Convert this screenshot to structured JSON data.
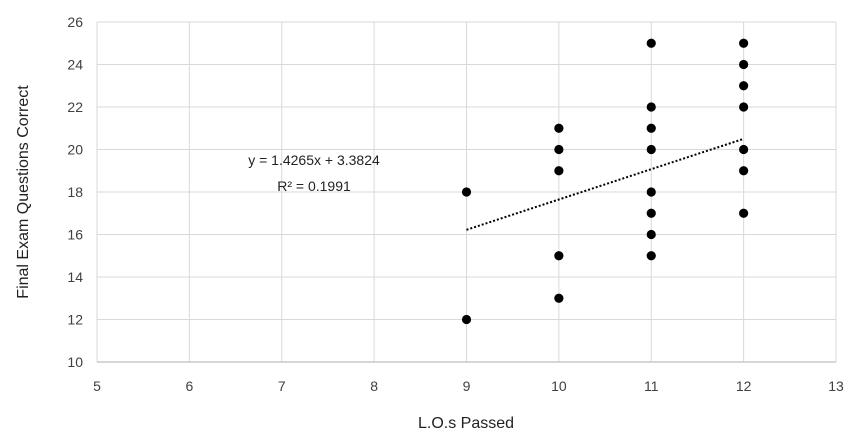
{
  "chart_data": {
    "type": "scatter",
    "title": "",
    "xlabel": "L.O.s Passed",
    "ylabel": "Final Exam Questions Correct",
    "xlim": [
      5,
      13
    ],
    "ylim": [
      10,
      26
    ],
    "x_ticks": [
      5,
      6,
      7,
      8,
      9,
      10,
      11,
      12,
      13
    ],
    "y_ticks": [
      10,
      12,
      14,
      16,
      18,
      20,
      22,
      24,
      26
    ],
    "grid": true,
    "legend": "none",
    "marker_color": "#000000",
    "trendline": {
      "type": "linear",
      "slope": 1.4265,
      "intercept": 3.3824,
      "x_range": [
        9,
        12
      ],
      "style": "dotted",
      "equation_label": "y = 1.4265x + 3.3824",
      "r2_label": "R² = 0.1991"
    },
    "points": [
      {
        "x": 9,
        "y": 18
      },
      {
        "x": 9,
        "y": 12
      },
      {
        "x": 10,
        "y": 21
      },
      {
        "x": 10,
        "y": 20
      },
      {
        "x": 10,
        "y": 19
      },
      {
        "x": 10,
        "y": 15
      },
      {
        "x": 10,
        "y": 13
      },
      {
        "x": 11,
        "y": 25
      },
      {
        "x": 11,
        "y": 22
      },
      {
        "x": 11,
        "y": 21
      },
      {
        "x": 11,
        "y": 20
      },
      {
        "x": 11,
        "y": 18
      },
      {
        "x": 11,
        "y": 17
      },
      {
        "x": 11,
        "y": 16
      },
      {
        "x": 11,
        "y": 15
      },
      {
        "x": 12,
        "y": 25
      },
      {
        "x": 12,
        "y": 24
      },
      {
        "x": 12,
        "y": 23
      },
      {
        "x": 12,
        "y": 22
      },
      {
        "x": 12,
        "y": 20
      },
      {
        "x": 12,
        "y": 19
      },
      {
        "x": 12,
        "y": 17
      }
    ]
  }
}
